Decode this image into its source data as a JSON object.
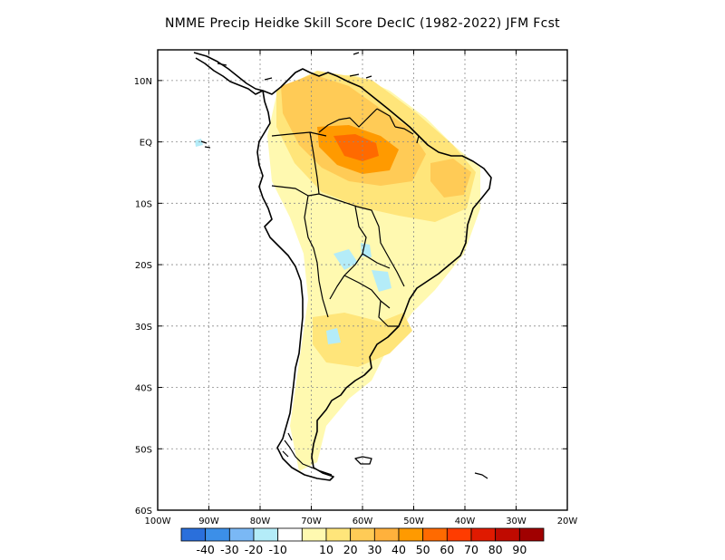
{
  "title": "NMME Precip Heidke Skill Score DecIC (1982-2022) JFM Fcst",
  "map": {
    "lon_range": [
      -100,
      -20
    ],
    "lat_range": [
      -60,
      15
    ],
    "lat_labels": [
      {
        "lat": 10,
        "text": "10N"
      },
      {
        "lat": 0,
        "text": "EQ"
      },
      {
        "lat": -10,
        "text": "10S"
      },
      {
        "lat": -20,
        "text": "20S"
      },
      {
        "lat": -30,
        "text": "30S"
      },
      {
        "lat": -40,
        "text": "40S"
      },
      {
        "lat": -50,
        "text": "50S"
      },
      {
        "lat": -60,
        "text": "60S"
      }
    ],
    "lon_labels": [
      {
        "lon": -100,
        "text": "100W"
      },
      {
        "lon": -90,
        "text": "90W"
      },
      {
        "lon": -80,
        "text": "80W"
      },
      {
        "lon": -70,
        "text": "70W"
      },
      {
        "lon": -60,
        "text": "60W"
      },
      {
        "lon": -50,
        "text": "50W"
      },
      {
        "lon": -40,
        "text": "40W"
      },
      {
        "lon": -30,
        "text": "30W"
      },
      {
        "lon": -20,
        "text": "20W"
      }
    ],
    "grid_lines": true,
    "land_color": "#ffffff",
    "coast_color": "#000000"
  },
  "colorbar": {
    "colors": [
      "#2a6fdb",
      "#3c8fe8",
      "#7ab8f5",
      "#b4ecf8",
      "#ffffff",
      "#fff9b0",
      "#ffe57a",
      "#ffcb56",
      "#ffb13c",
      "#ff9a00",
      "#ff6a00",
      "#ff3c00",
      "#e01a00",
      "#c00a00",
      "#a00000"
    ],
    "labels": [
      "-40",
      "-30",
      "-20",
      "-10",
      "10",
      "20",
      "30",
      "40",
      "50",
      "60",
      "70",
      "80",
      "90"
    ]
  },
  "skill_regions": [
    {
      "name": "lightyellow-broad",
      "color": "#fff9b0"
    },
    {
      "name": "yellow-amazon",
      "color": "#ffe57a"
    },
    {
      "name": "orange-north",
      "color": "#ffcb56"
    },
    {
      "name": "darkorange-core",
      "color": "#ff9a00"
    },
    {
      "name": "red-core",
      "color": "#ff6a00"
    },
    {
      "name": "lightblue-patches",
      "color": "#b4ecf8"
    }
  ]
}
